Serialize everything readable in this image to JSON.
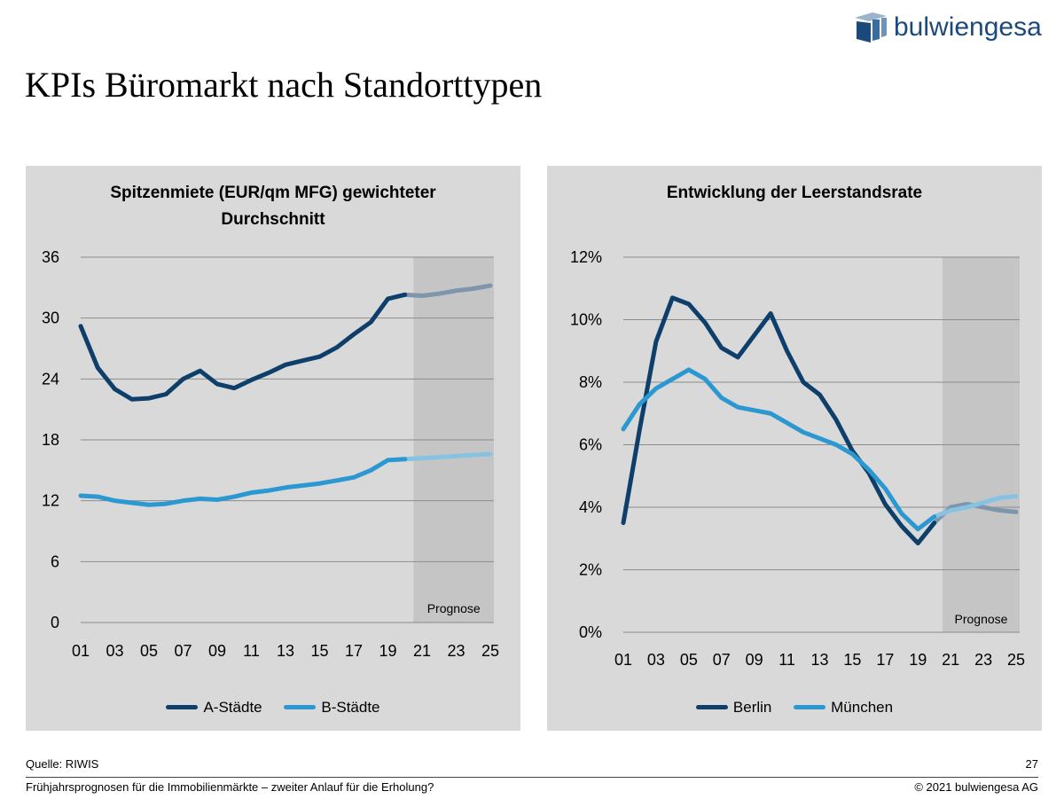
{
  "page": {
    "title": "KPIs Büromarkt nach Standorttypen",
    "logo_text": "bulwiengesa",
    "source": "Quelle: RIWIS",
    "page_number": "27",
    "subtitle": "Frühjahrsprognosen für die Immobilienmärkte – zweiter Anlauf für die Erholung?",
    "copyright": "© 2021 bulwiengesa AG"
  },
  "colors": {
    "series_dark": "#0e3f6b",
    "series_light": "#2b98d1",
    "forecast_dark": "#7f95ab",
    "forecast_light": "#86c2e2",
    "panel_bg": "#d9d9d9",
    "forecast_bg": "#c6c5c6",
    "grid": "#8c8c8c"
  },
  "chart_data": [
    {
      "type": "line",
      "title": "Spitzenmiete (EUR/qm MFG) gewichteter Durchschnitt",
      "title_lines": [
        "Spitzenmiete (EUR/qm MFG) gewichteter",
        "Durchschnitt"
      ],
      "x": [
        2001,
        2002,
        2003,
        2004,
        2005,
        2006,
        2007,
        2008,
        2009,
        2010,
        2011,
        2012,
        2013,
        2014,
        2015,
        2016,
        2017,
        2018,
        2019,
        2020,
        2021,
        2022,
        2023,
        2024,
        2025
      ],
      "x_tick_labels": [
        "01",
        "03",
        "05",
        "07",
        "09",
        "11",
        "13",
        "15",
        "17",
        "19",
        "21",
        "23",
        "25"
      ],
      "x_tick_values": [
        2001,
        2003,
        2005,
        2007,
        2009,
        2011,
        2013,
        2015,
        2017,
        2019,
        2021,
        2023,
        2025
      ],
      "ylim": [
        0,
        36
      ],
      "y_ticks": [
        0,
        6,
        12,
        18,
        24,
        30,
        36
      ],
      "y_tick_labels": [
        "0",
        "6",
        "12",
        "18",
        "24",
        "30",
        "36"
      ],
      "forecast_start": 2020.5,
      "forecast_label": "Prognose",
      "grid": true,
      "legend": "bottom",
      "series": [
        {
          "name": "A-Städte",
          "values": [
            29.2,
            25.1,
            23.0,
            22.0,
            22.1,
            22.5,
            24.0,
            24.8,
            23.5,
            23.1,
            23.9,
            24.6,
            25.4,
            25.8,
            26.2,
            27.1,
            28.4,
            29.6,
            31.9,
            32.3,
            32.2,
            32.4,
            32.7,
            32.9,
            33.2
          ],
          "color_key": "series_dark"
        },
        {
          "name": "B-Städte",
          "values": [
            12.5,
            12.4,
            12.0,
            11.8,
            11.6,
            11.7,
            12.0,
            12.2,
            12.1,
            12.4,
            12.8,
            13.0,
            13.3,
            13.5,
            13.7,
            14.0,
            14.3,
            15.0,
            16.0,
            16.1,
            16.2,
            16.3,
            16.4,
            16.5,
            16.6
          ],
          "color_key": "series_light"
        }
      ]
    },
    {
      "type": "line",
      "title": "Entwicklung der Leerstandsrate",
      "title_lines": [
        "Entwicklung der Leerstandsrate"
      ],
      "x": [
        2001,
        2002,
        2003,
        2004,
        2005,
        2006,
        2007,
        2008,
        2009,
        2010,
        2011,
        2012,
        2013,
        2014,
        2015,
        2016,
        2017,
        2018,
        2019,
        2020,
        2021,
        2022,
        2023,
        2024,
        2025
      ],
      "x_tick_labels": [
        "01",
        "03",
        "05",
        "07",
        "09",
        "11",
        "13",
        "15",
        "17",
        "19",
        "21",
        "23",
        "25"
      ],
      "x_tick_values": [
        2001,
        2003,
        2005,
        2007,
        2009,
        2011,
        2013,
        2015,
        2017,
        2019,
        2021,
        2023,
        2025
      ],
      "ylim": [
        0,
        12
      ],
      "y_ticks": [
        0,
        2,
        4,
        6,
        8,
        10,
        12
      ],
      "y_tick_labels": [
        "0%",
        "2%",
        "4%",
        "6%",
        "8%",
        "10%",
        "12%"
      ],
      "forecast_start": 2020.5,
      "forecast_label": "Prognose",
      "grid": true,
      "legend": "bottom",
      "series": [
        {
          "name": "Berlin",
          "values": [
            3.5,
            6.5,
            9.3,
            10.7,
            10.5,
            9.9,
            9.1,
            8.8,
            9.5,
            10.2,
            9.0,
            8.0,
            7.6,
            6.8,
            5.8,
            5.1,
            4.1,
            3.4,
            2.85,
            3.5,
            4.0,
            4.1,
            4.0,
            3.9,
            3.85
          ],
          "color_key": "series_dark"
        },
        {
          "name": "München",
          "values": [
            6.5,
            7.3,
            7.8,
            8.1,
            8.4,
            8.1,
            7.5,
            7.2,
            7.1,
            7.0,
            6.7,
            6.4,
            6.2,
            6.0,
            5.7,
            5.2,
            4.6,
            3.8,
            3.3,
            3.7,
            3.9,
            4.0,
            4.15,
            4.3,
            4.35
          ],
          "color_key": "series_light"
        }
      ]
    }
  ]
}
